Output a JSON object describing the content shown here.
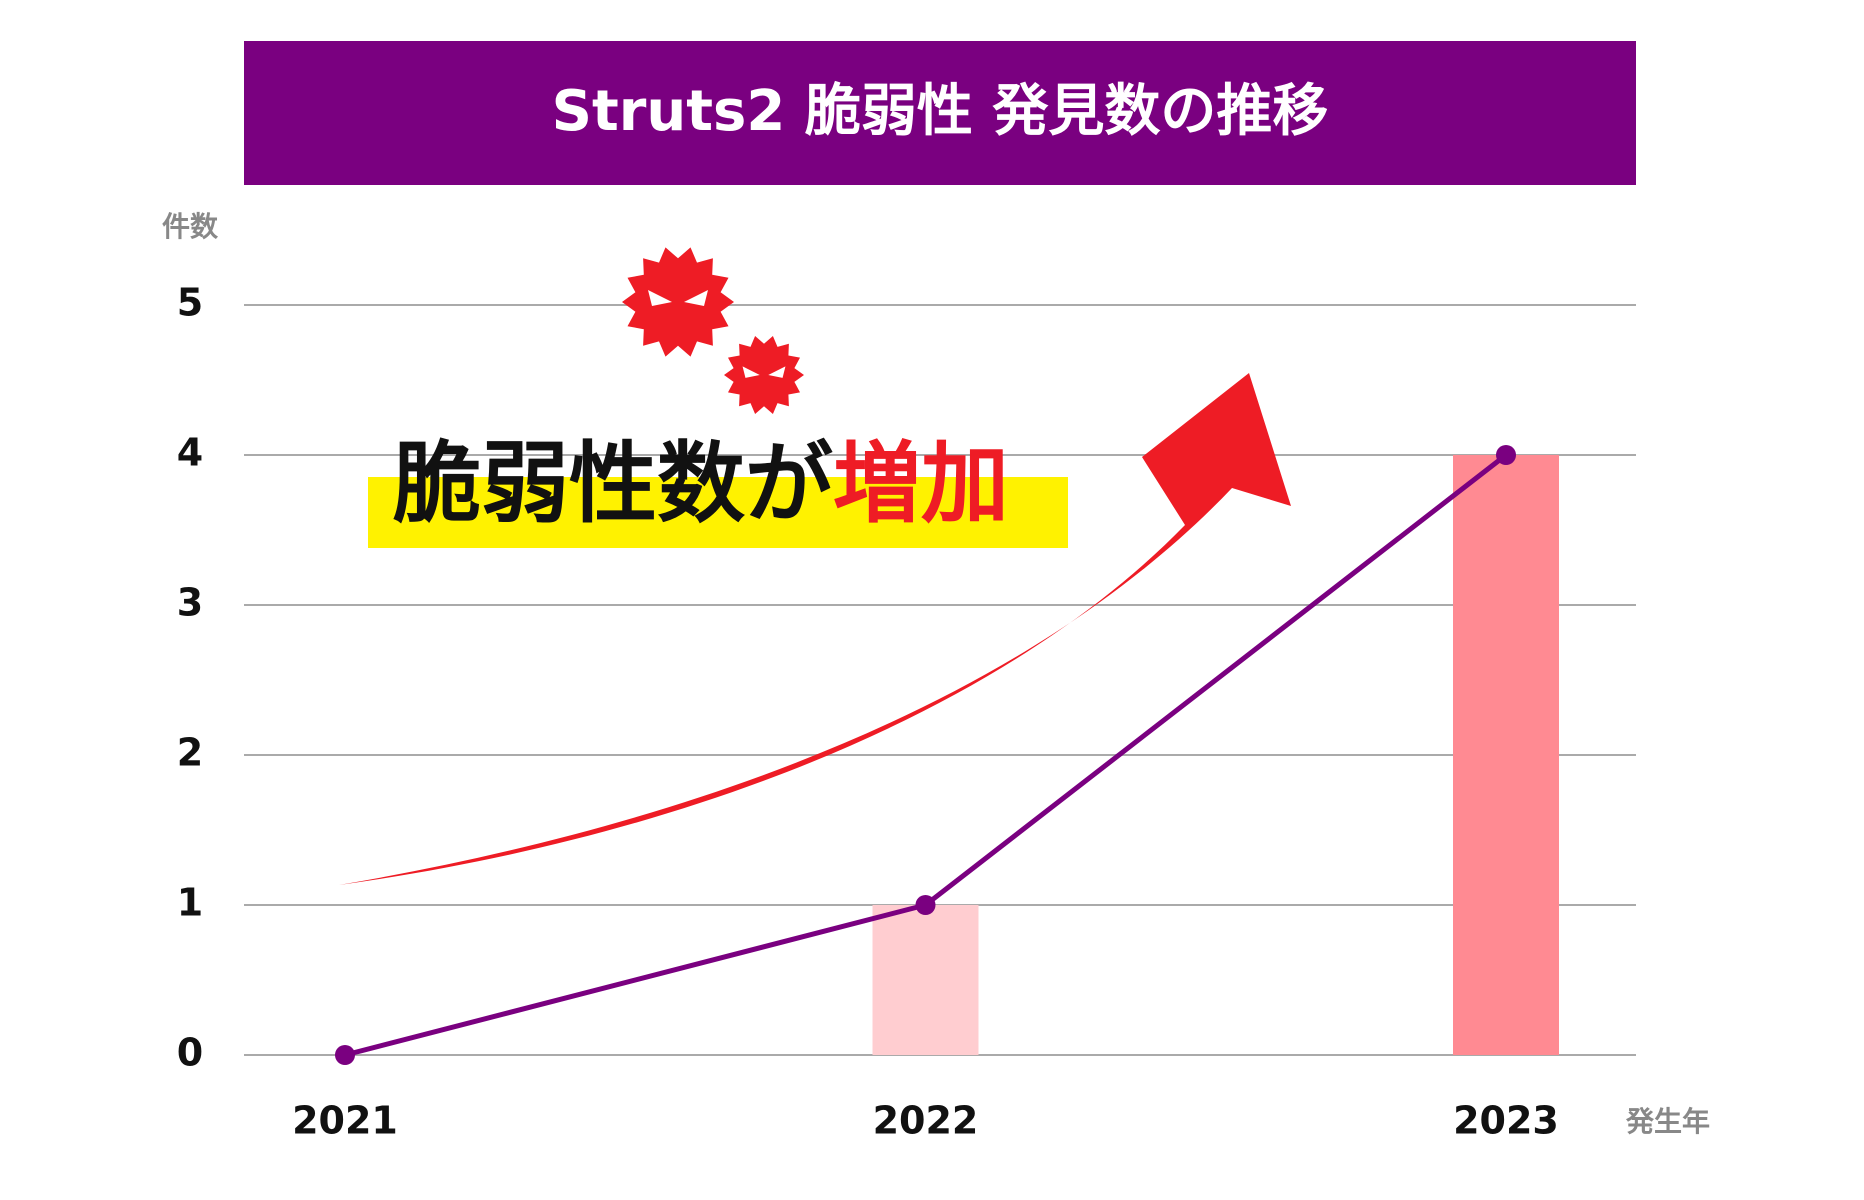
{
  "chart_data": {
    "type": "combo",
    "title": "Struts2 脆弱性 発見数の推移",
    "y_label": "件数",
    "x_label": "発生年",
    "annotation": [
      "脆弱性数が",
      "増加"
    ],
    "categories": [
      "2021",
      "2022",
      "2023"
    ],
    "values": [
      0,
      1,
      4
    ],
    "bar_colors": [
      "#ffcdd0",
      "#ffcdd0",
      "#ff8a92"
    ],
    "line_color": "#7a0080",
    "ylim": [
      0,
      5
    ],
    "yticks": [
      0,
      1,
      2,
      3,
      4,
      5
    ],
    "grid": true
  }
}
